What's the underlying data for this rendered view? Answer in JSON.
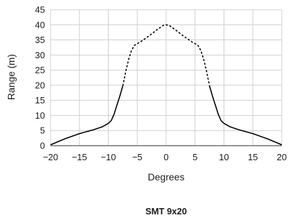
{
  "chart_data": {
    "type": "line",
    "title": "SMT 9x20",
    "xlabel": "Degrees",
    "ylabel": "Range (m)",
    "xlim": [
      -20,
      20
    ],
    "ylim": [
      0,
      45
    ],
    "xticks": [
      -20,
      -15,
      -10,
      -5,
      0,
      5,
      10,
      15,
      20
    ],
    "yticks": [
      0,
      5,
      10,
      15,
      20,
      25,
      30,
      35,
      40,
      45
    ],
    "xtick_labels": [
      "−20",
      "−15",
      "−10",
      "−5",
      "0",
      "5",
      "10",
      "15",
      "20"
    ],
    "ytick_labels": [
      "0",
      "5",
      "10",
      "15",
      "20",
      "25",
      "30",
      "35",
      "40",
      "45"
    ],
    "grid": true,
    "series": [
      {
        "style": "solid",
        "color": "#000000",
        "x": [
          -20,
          -17.5,
          -15,
          -12.5,
          -11,
          -10,
          -9.5,
          -9,
          -8.5,
          -8,
          -7.5
        ],
        "y": [
          0.3,
          2.3,
          4.0,
          5.3,
          6.3,
          7.4,
          8.3,
          10.5,
          13.5,
          16.5,
          19.8
        ]
      },
      {
        "style": "dashed",
        "color": "#000000",
        "x": [
          -7.5,
          -7.0,
          -6.5,
          -6.0,
          -5.5,
          -4.5,
          -3.5,
          -2.5,
          -1.5,
          -0.5,
          0,
          0.5,
          1.5,
          2.5,
          3.5,
          4.5,
          5.5,
          6.0,
          6.5,
          7.0,
          7.5
        ],
        "y": [
          19.8,
          24.5,
          28.5,
          31.5,
          33.2,
          34.3,
          35.6,
          37.0,
          38.5,
          39.8,
          40.0,
          39.8,
          38.5,
          37.0,
          35.6,
          34.3,
          33.2,
          31.5,
          28.5,
          24.5,
          19.8
        ]
      },
      {
        "style": "solid",
        "color": "#000000",
        "x": [
          7.5,
          8,
          8.5,
          9,
          9.5,
          10,
          11,
          12.5,
          15,
          17.5,
          20
        ],
        "y": [
          19.8,
          16.5,
          13.5,
          10.5,
          8.3,
          7.4,
          6.3,
          5.3,
          4.0,
          2.3,
          0.3
        ]
      }
    ]
  }
}
